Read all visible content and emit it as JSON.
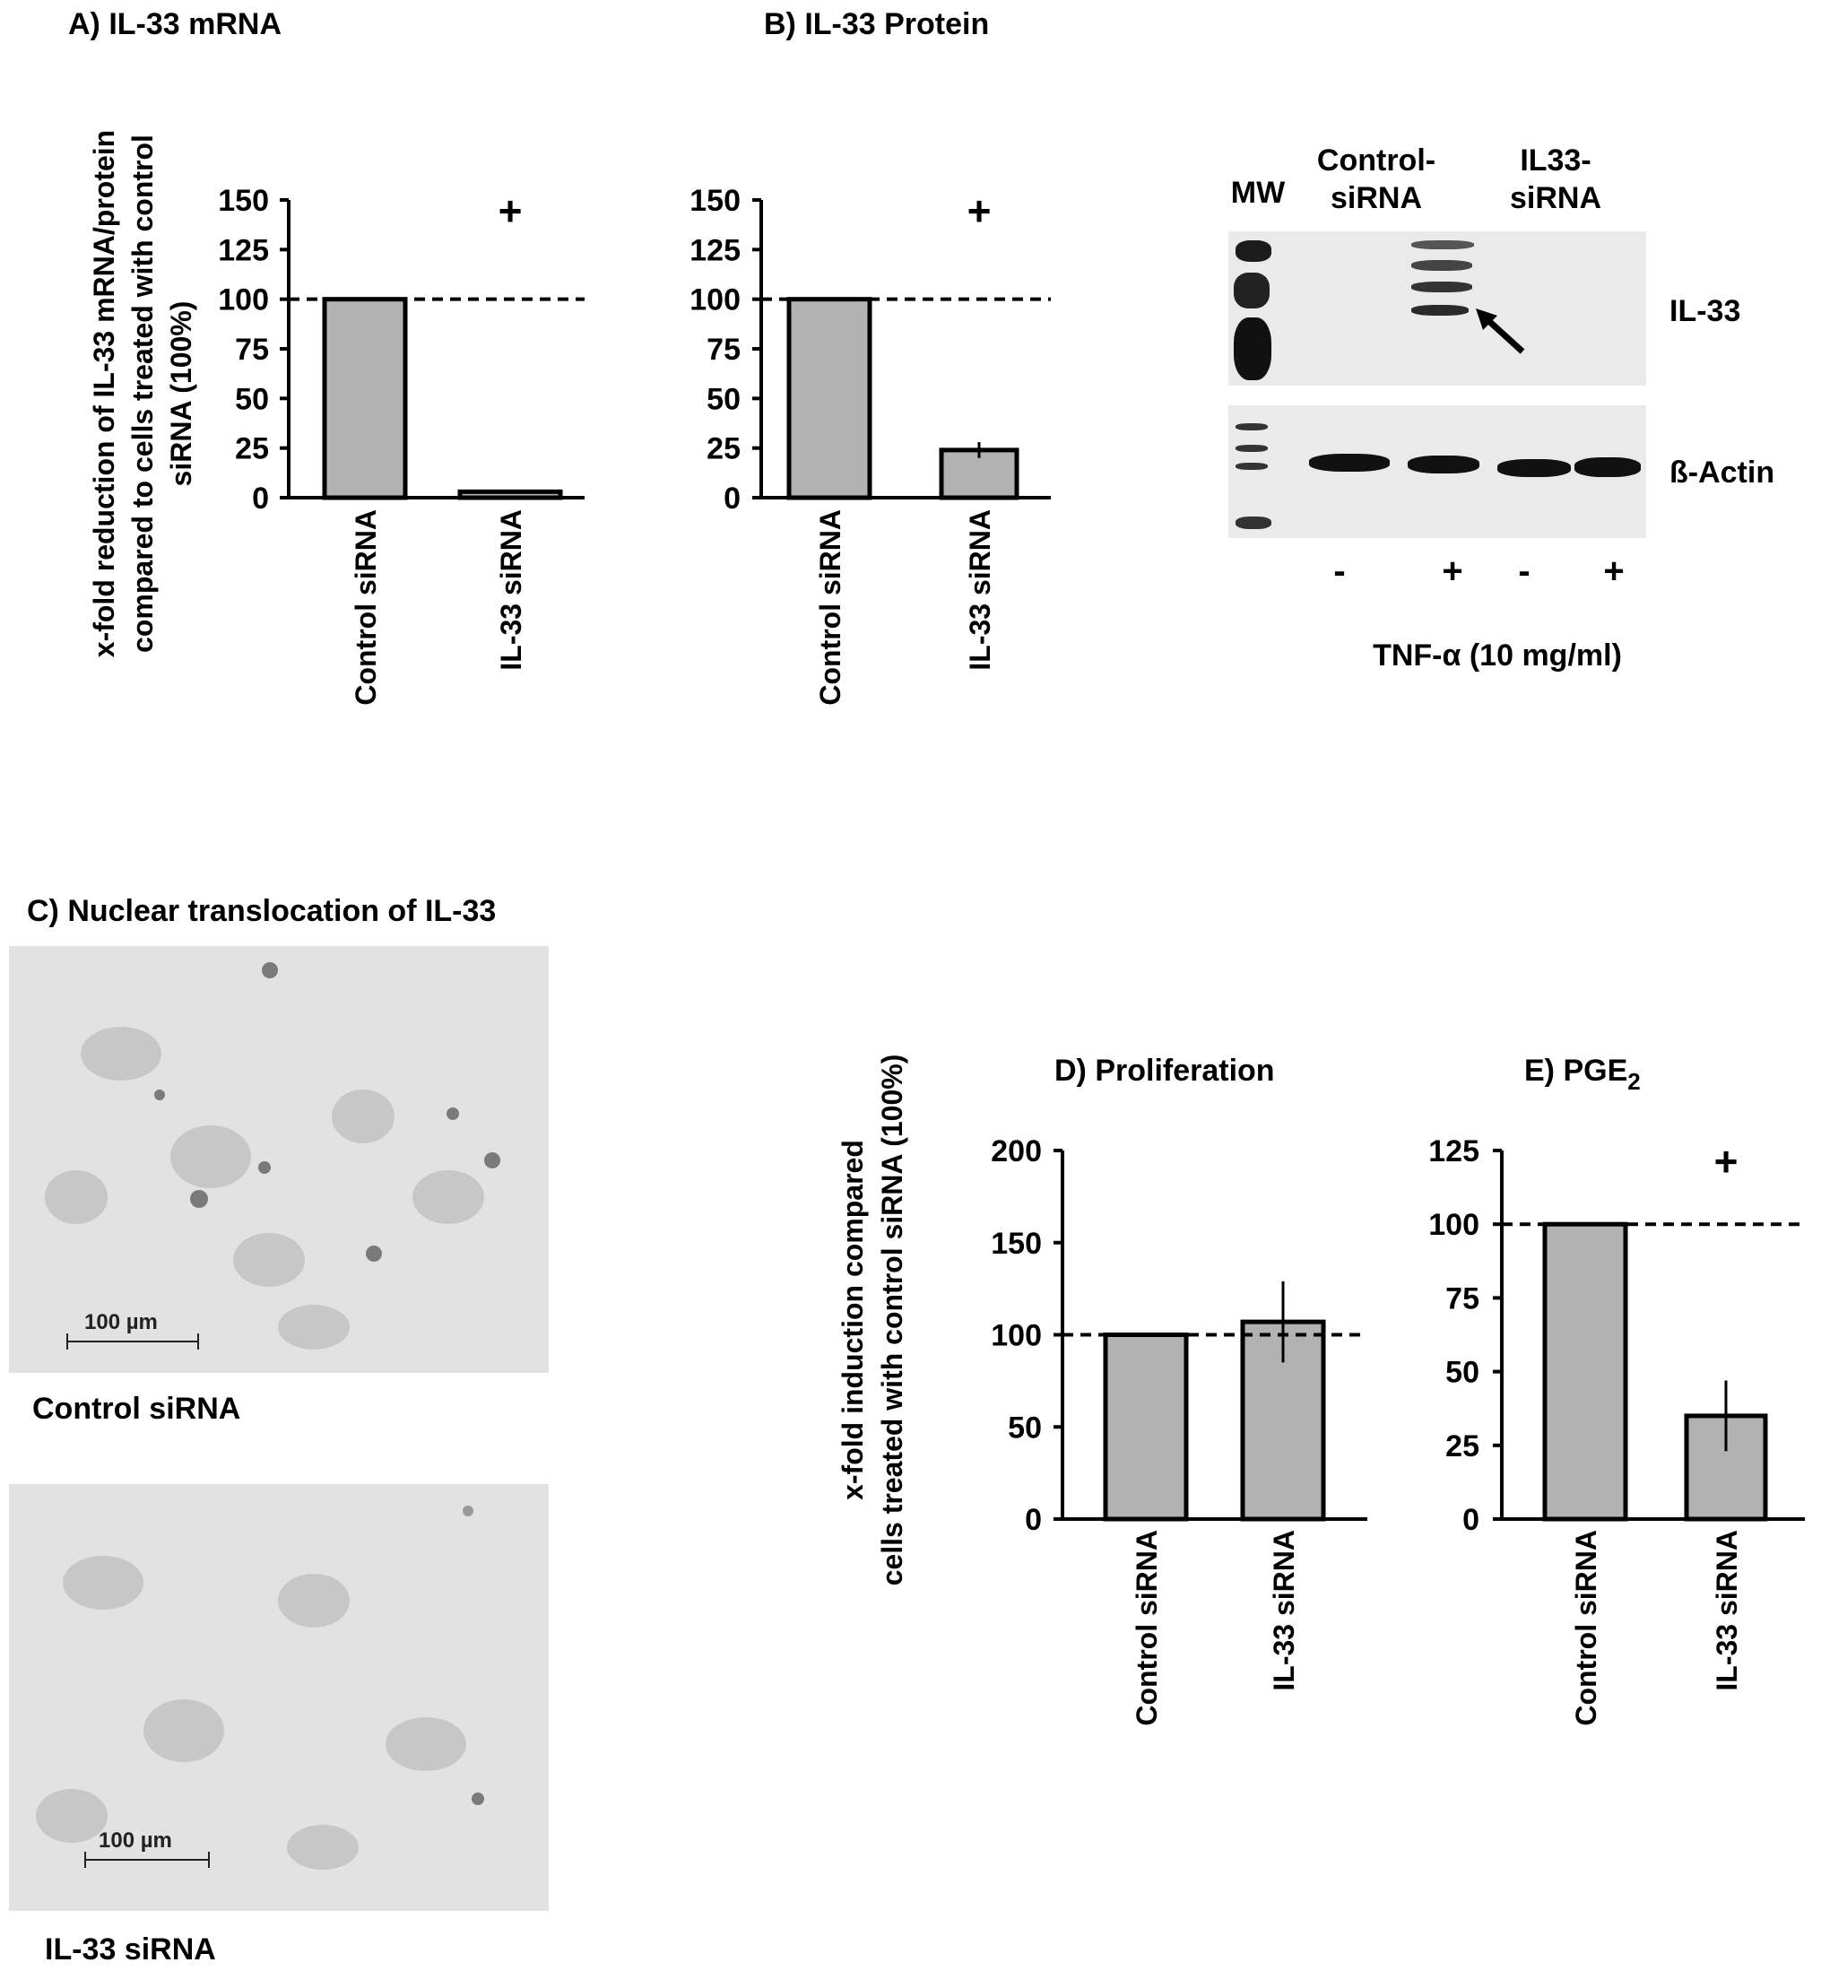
{
  "panels": {
    "a_title": "A) IL-33 mRNA",
    "b_title": "B) IL-33 Protein",
    "c_title": "C) Nuclear translocation of IL-33",
    "d_title": "D) Proliferation",
    "e_title_main": "E) PGE",
    "e_title_sub": "2"
  },
  "shared_ylabels": {
    "ab_line1": "x-fold reduction of IL-33 mRNA/protein",
    "ab_line2": "compared to cells treated with control",
    "ab_line3": "siRNA (100%)",
    "de_line1": "x-fold induction compared",
    "de_line2": "cells treated with control siRNA (100%)"
  },
  "significance_marker": "+",
  "chart_data": [
    {
      "type": "bar",
      "title": "A) IL-33 mRNA",
      "categories": [
        "Control siRNA",
        "IL-33 siRNA"
      ],
      "values": [
        100,
        3
      ],
      "errors": [
        0,
        1
      ],
      "ylim": [
        0,
        150
      ],
      "yticks": [
        0,
        25,
        50,
        75,
        100,
        125,
        150
      ],
      "reference_line": 100,
      "significance": "+",
      "bar_color": "#b2b2b2"
    },
    {
      "type": "bar",
      "title": "B) IL-33 Protein",
      "categories": [
        "Control siRNA",
        "IL-33 siRNA"
      ],
      "values": [
        100,
        24
      ],
      "errors": [
        0,
        4
      ],
      "ylim": [
        0,
        150
      ],
      "yticks": [
        0,
        25,
        50,
        75,
        100,
        125,
        150
      ],
      "reference_line": 100,
      "significance": "+",
      "bar_color": "#b2b2b2"
    },
    {
      "type": "bar",
      "title": "D) Proliferation",
      "categories": [
        "Control siRNA",
        "IL-33 siRNA"
      ],
      "values": [
        100,
        107
      ],
      "errors": [
        0,
        22
      ],
      "ylim": [
        0,
        200
      ],
      "yticks": [
        0,
        50,
        100,
        150,
        200
      ],
      "reference_line": 100,
      "significance": "",
      "bar_color": "#b2b2b2"
    },
    {
      "type": "bar",
      "title": "E) PGE2",
      "categories": [
        "Control siRNA",
        "IL-33 siRNA"
      ],
      "values": [
        100,
        35
      ],
      "errors": [
        0,
        12
      ],
      "ylim": [
        0,
        125
      ],
      "yticks": [
        0,
        25,
        50,
        75,
        100,
        125
      ],
      "reference_line": 100,
      "significance": "+",
      "bar_color": "#b2b2b2"
    }
  ],
  "western_blot": {
    "mw_label": "MW",
    "lane_group_1": "Control-\nsiRNA",
    "lane_group_2": "IL33-\nsiRNA",
    "row_labels": [
      "IL-33",
      "ß-Actin"
    ],
    "treatment_signs": [
      "-",
      "+",
      "-",
      "+"
    ],
    "treatment_label": "TNF-α (10 mg/ml)"
  },
  "micrographs": {
    "top_caption": "Control siRNA",
    "bottom_caption": "IL-33 siRNA",
    "scale_label": "100 µm"
  }
}
